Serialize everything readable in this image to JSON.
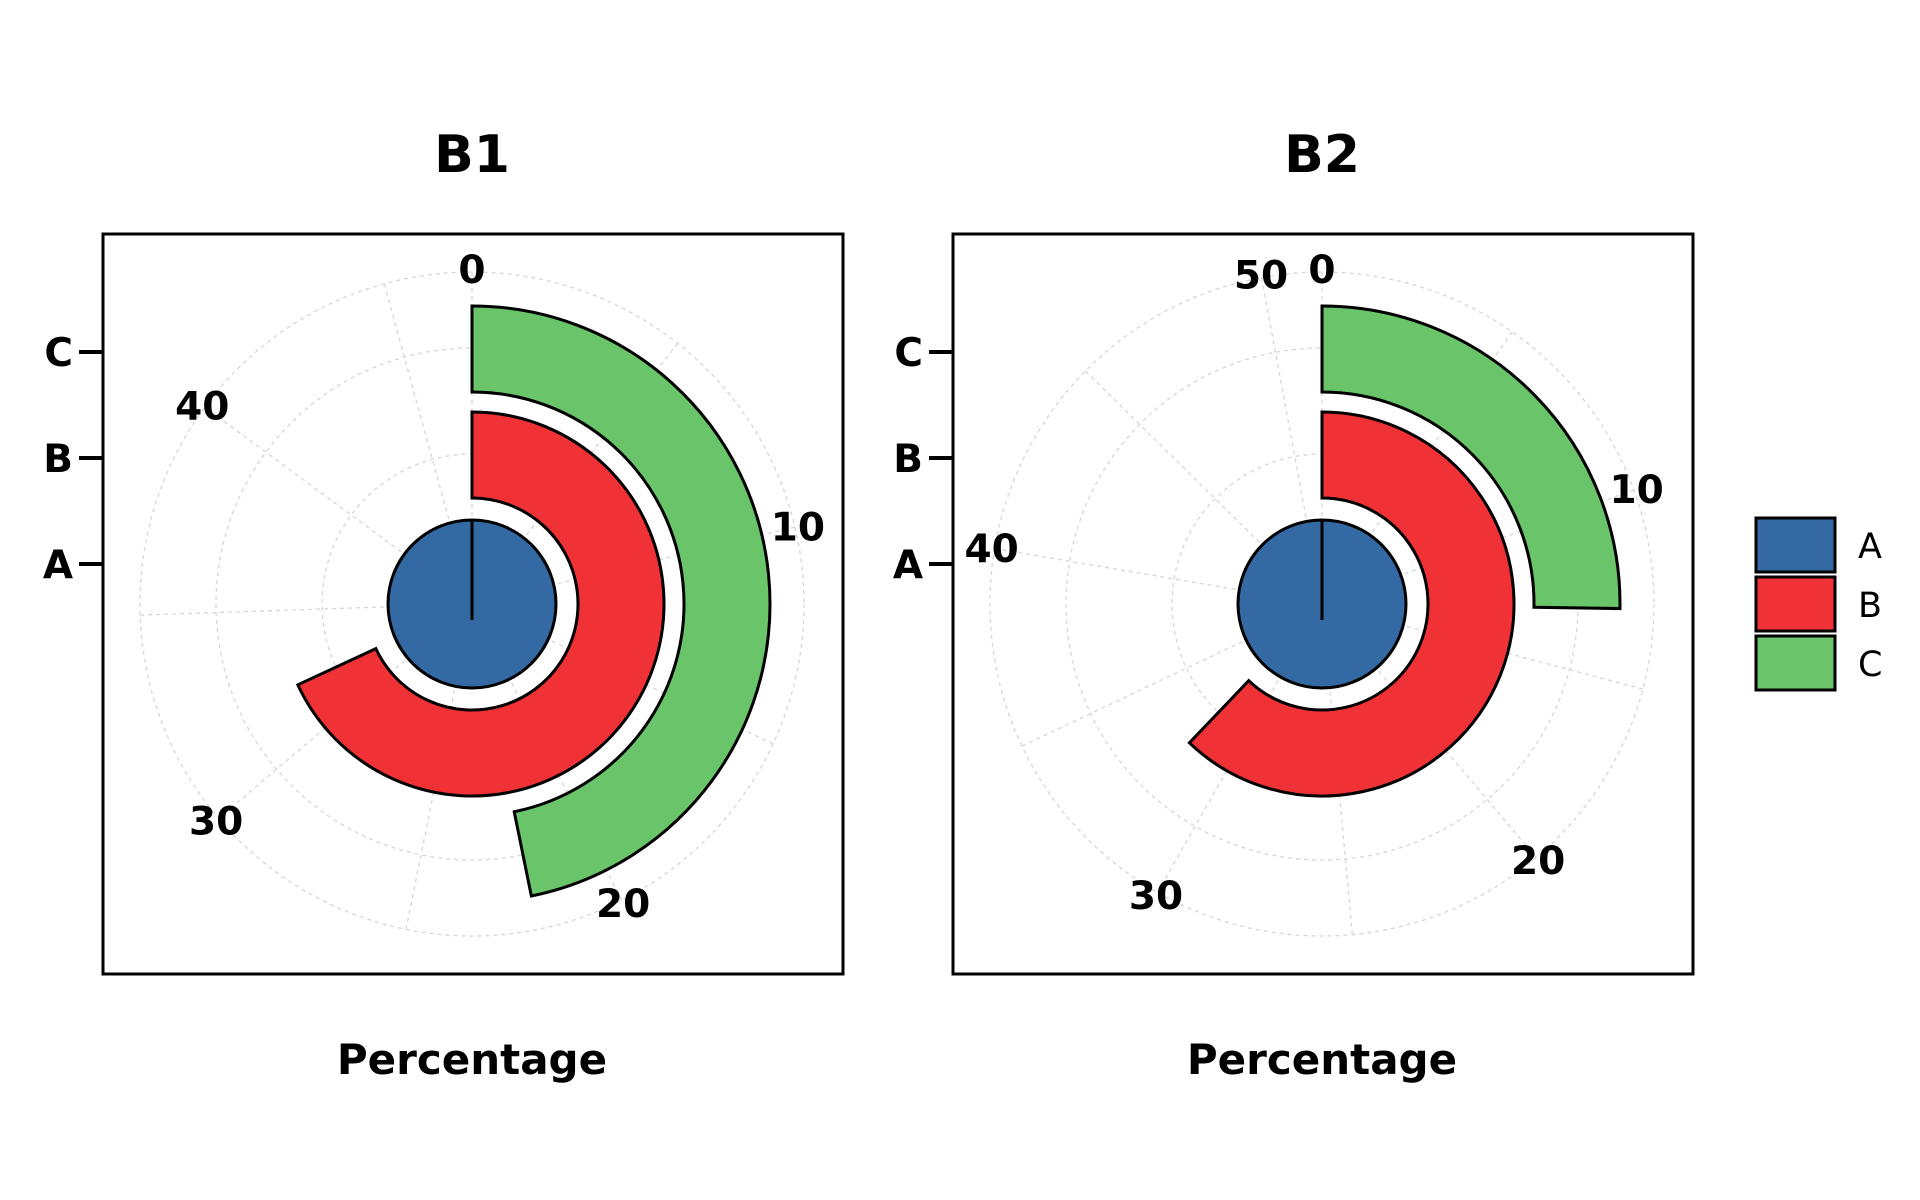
{
  "chart_data": [
    {
      "type": "bar",
      "title": "B1",
      "xlabel": "Percentage",
      "categories": [
        "A",
        "B",
        "C"
      ],
      "values": [
        0,
        32,
        22
      ],
      "theta_max": 47,
      "theta_ticks": [
        0,
        10,
        20,
        30,
        40
      ],
      "grid": true
    },
    {
      "type": "bar",
      "title": "B2",
      "xlabel": "Percentage",
      "categories": [
        "A",
        "B",
        "C"
      ],
      "values": [
        0,
        32,
        13
      ],
      "theta_max": 51.5,
      "theta_ticks": [
        0,
        10,
        20,
        30,
        40,
        50
      ],
      "grid": true
    }
  ],
  "legend": {
    "placement": "right",
    "items": [
      {
        "label": "A",
        "color": "#336aa4"
      },
      {
        "label": "B",
        "color": "#f03236"
      },
      {
        "label": "C",
        "color": "#6ac56a"
      }
    ]
  }
}
